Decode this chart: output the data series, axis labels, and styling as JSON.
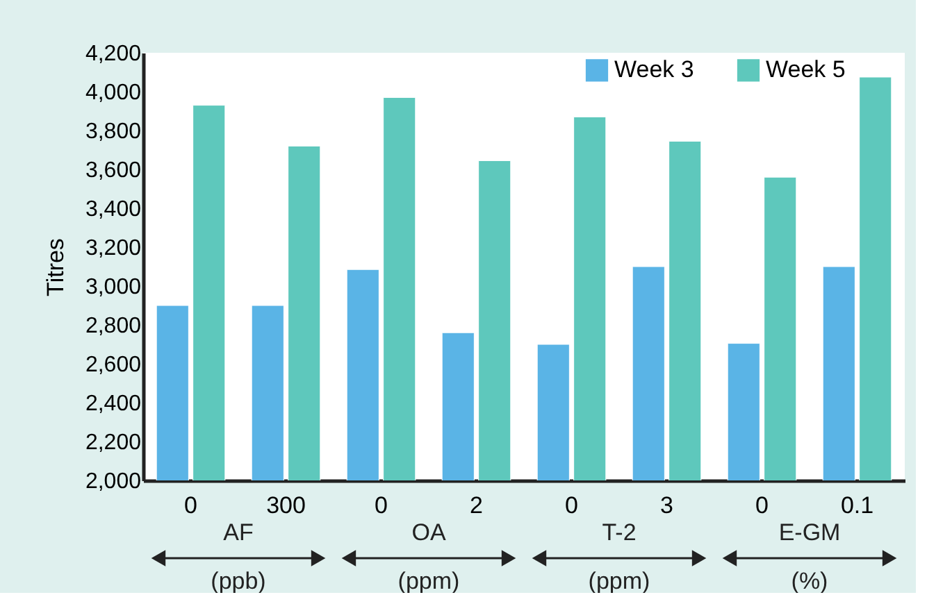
{
  "chart_data": {
    "type": "bar",
    "ylabel": "Titres",
    "categories": [
      "0",
      "300",
      "0",
      "2",
      "0",
      "3",
      "0",
      "0.1"
    ],
    "series": [
      {
        "name": "Week 3",
        "color": "#5ab4e6",
        "values": [
          2900,
          2900,
          3085,
          2760,
          2700,
          3100,
          2705,
          3100
        ]
      },
      {
        "name": "Week 5",
        "color": "#5ec8bc",
        "values": [
          3930,
          3720,
          3970,
          3645,
          3870,
          3745,
          3560,
          4075
        ]
      }
    ],
    "ylim": [
      2000,
      4200
    ],
    "yticks": [
      {
        "value": 2000,
        "label": "2,000"
      },
      {
        "value": 2200,
        "label": "2,200"
      },
      {
        "value": 2400,
        "label": "2,400"
      },
      {
        "value": 2600,
        "label": "2,600"
      },
      {
        "value": 2800,
        "label": "2,800"
      },
      {
        "value": 3000,
        "label": "3,000"
      },
      {
        "value": 3200,
        "label": "3,200"
      },
      {
        "value": 3400,
        "label": "3,400"
      },
      {
        "value": 3600,
        "label": "3,600"
      },
      {
        "value": 3800,
        "label": "3,800"
      },
      {
        "value": 4000,
        "label": "4,000"
      },
      {
        "value": 4200,
        "label": "4,200"
      }
    ],
    "annotations": [
      "AF",
      "(ppb)",
      "OA",
      "(ppm)",
      "T-2",
      "(ppm)",
      "E-GM",
      "(%)"
    ],
    "legend": "top right",
    "grid": false
  }
}
